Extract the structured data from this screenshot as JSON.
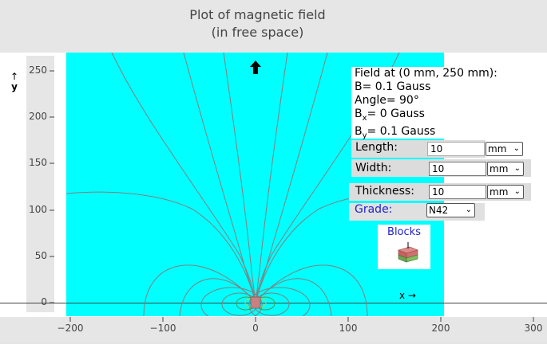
{
  "title_line1": "Plot of magnetic field",
  "title_line2": "(in free space)",
  "y_axis_label": "y",
  "x_axis_label": "x →",
  "y_ticks": [
    "250",
    "200",
    "150",
    "100",
    "50",
    "0"
  ],
  "x_ticks": [
    "−200",
    "−100",
    "0",
    "100",
    "200",
    "300"
  ],
  "info": {
    "heading": "Field at (0 mm, 250 mm):",
    "b": "B= 0.1 Gauss",
    "angle": "Angle= 90°",
    "bx_prefix": "B",
    "bx_sub": "x",
    "bx_value": "= 0 Gauss",
    "by_prefix": "B",
    "by_sub": "y",
    "by_value": "= 0.1 Gauss"
  },
  "controls": {
    "length_label": "Length:",
    "length_value": "10",
    "length_unit": "mm",
    "width_label": "Width:",
    "width_value": "10",
    "width_unit": "mm",
    "thickness_label": "Thickness:",
    "thickness_value": "10",
    "thickness_unit": "mm",
    "grade_label": "Grade:",
    "grade_value": "N42"
  },
  "blocks_label": "Blocks",
  "colors": {
    "plot_background": "#00ffff",
    "field_lines": "#808080",
    "link_blue": "#2222cc"
  },
  "icons": [
    "up-arrow-icon",
    "magnet-block-icon",
    "chevron-down-icon"
  ]
}
